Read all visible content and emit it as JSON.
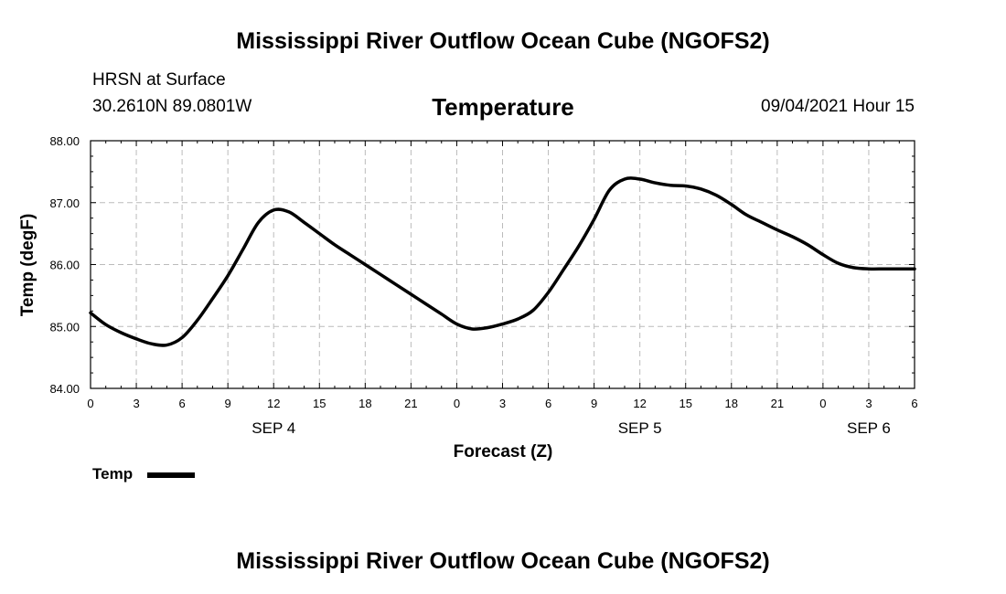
{
  "header": {
    "title": "Mississippi River Outflow Ocean Cube (NGOFS2)",
    "station": "HRSN at Surface",
    "coords": "30.2610N  89.0801W",
    "chart_title": "Temperature",
    "forecast_time": "09/04/2021 Hour 15"
  },
  "footer": {
    "title": "Mississippi River Outflow Ocean Cube (NGOFS2)"
  },
  "legend": {
    "label": "Temp"
  },
  "colors": {
    "line": "#000000",
    "grid": "#bbbbbb"
  },
  "chart_data": {
    "type": "line",
    "title": "Temperature",
    "xlabel": "Forecast (Z)",
    "ylabel": "Temp (degF)",
    "xlim": [
      0,
      54
    ],
    "ylim": [
      84.0,
      88.0
    ],
    "yticks": [
      "84.00",
      "85.00",
      "86.00",
      "87.00",
      "88.00"
    ],
    "ytick_values": [
      84,
      85,
      86,
      87,
      88
    ],
    "xtick_values": [
      0,
      3,
      6,
      9,
      12,
      15,
      18,
      21,
      24,
      27,
      30,
      33,
      36,
      39,
      42,
      45,
      48,
      51,
      54
    ],
    "xtick_labels": [
      "0",
      "3",
      "6",
      "9",
      "12",
      "15",
      "18",
      "21",
      "0",
      "3",
      "6",
      "9",
      "12",
      "15",
      "18",
      "21",
      "0",
      "3",
      "6"
    ],
    "date_labels": [
      {
        "label": "SEP 4",
        "x": 12
      },
      {
        "label": "SEP 5",
        "x": 36
      },
      {
        "label": "SEP 6",
        "x": 51
      }
    ],
    "grid": true,
    "series": [
      {
        "name": "Temp",
        "x": [
          0,
          1,
          2,
          3,
          4,
          5,
          6,
          7,
          8,
          9,
          10,
          11,
          12,
          13,
          14,
          15,
          16,
          17,
          18,
          19,
          20,
          21,
          22,
          23,
          24,
          25,
          26,
          27,
          28,
          29,
          30,
          31,
          32,
          33,
          34,
          35,
          36,
          37,
          38,
          39,
          40,
          41,
          42,
          43,
          44,
          45,
          46,
          47,
          48,
          49,
          50,
          51,
          52,
          53,
          54
        ],
        "values": [
          85.22,
          85.03,
          84.9,
          84.8,
          84.72,
          84.7,
          84.82,
          85.1,
          85.45,
          85.82,
          86.25,
          86.68,
          86.88,
          86.85,
          86.68,
          86.5,
          86.32,
          86.16,
          86.0,
          85.84,
          85.68,
          85.52,
          85.36,
          85.2,
          85.04,
          84.96,
          84.98,
          85.04,
          85.12,
          85.26,
          85.55,
          85.92,
          86.3,
          86.73,
          87.2,
          87.38,
          87.38,
          87.32,
          87.28,
          87.27,
          87.22,
          87.12,
          86.97,
          86.8,
          86.68,
          86.56,
          86.45,
          86.32,
          86.16,
          86.02,
          85.95,
          85.93,
          85.93,
          85.93,
          85.93
        ]
      }
    ]
  }
}
